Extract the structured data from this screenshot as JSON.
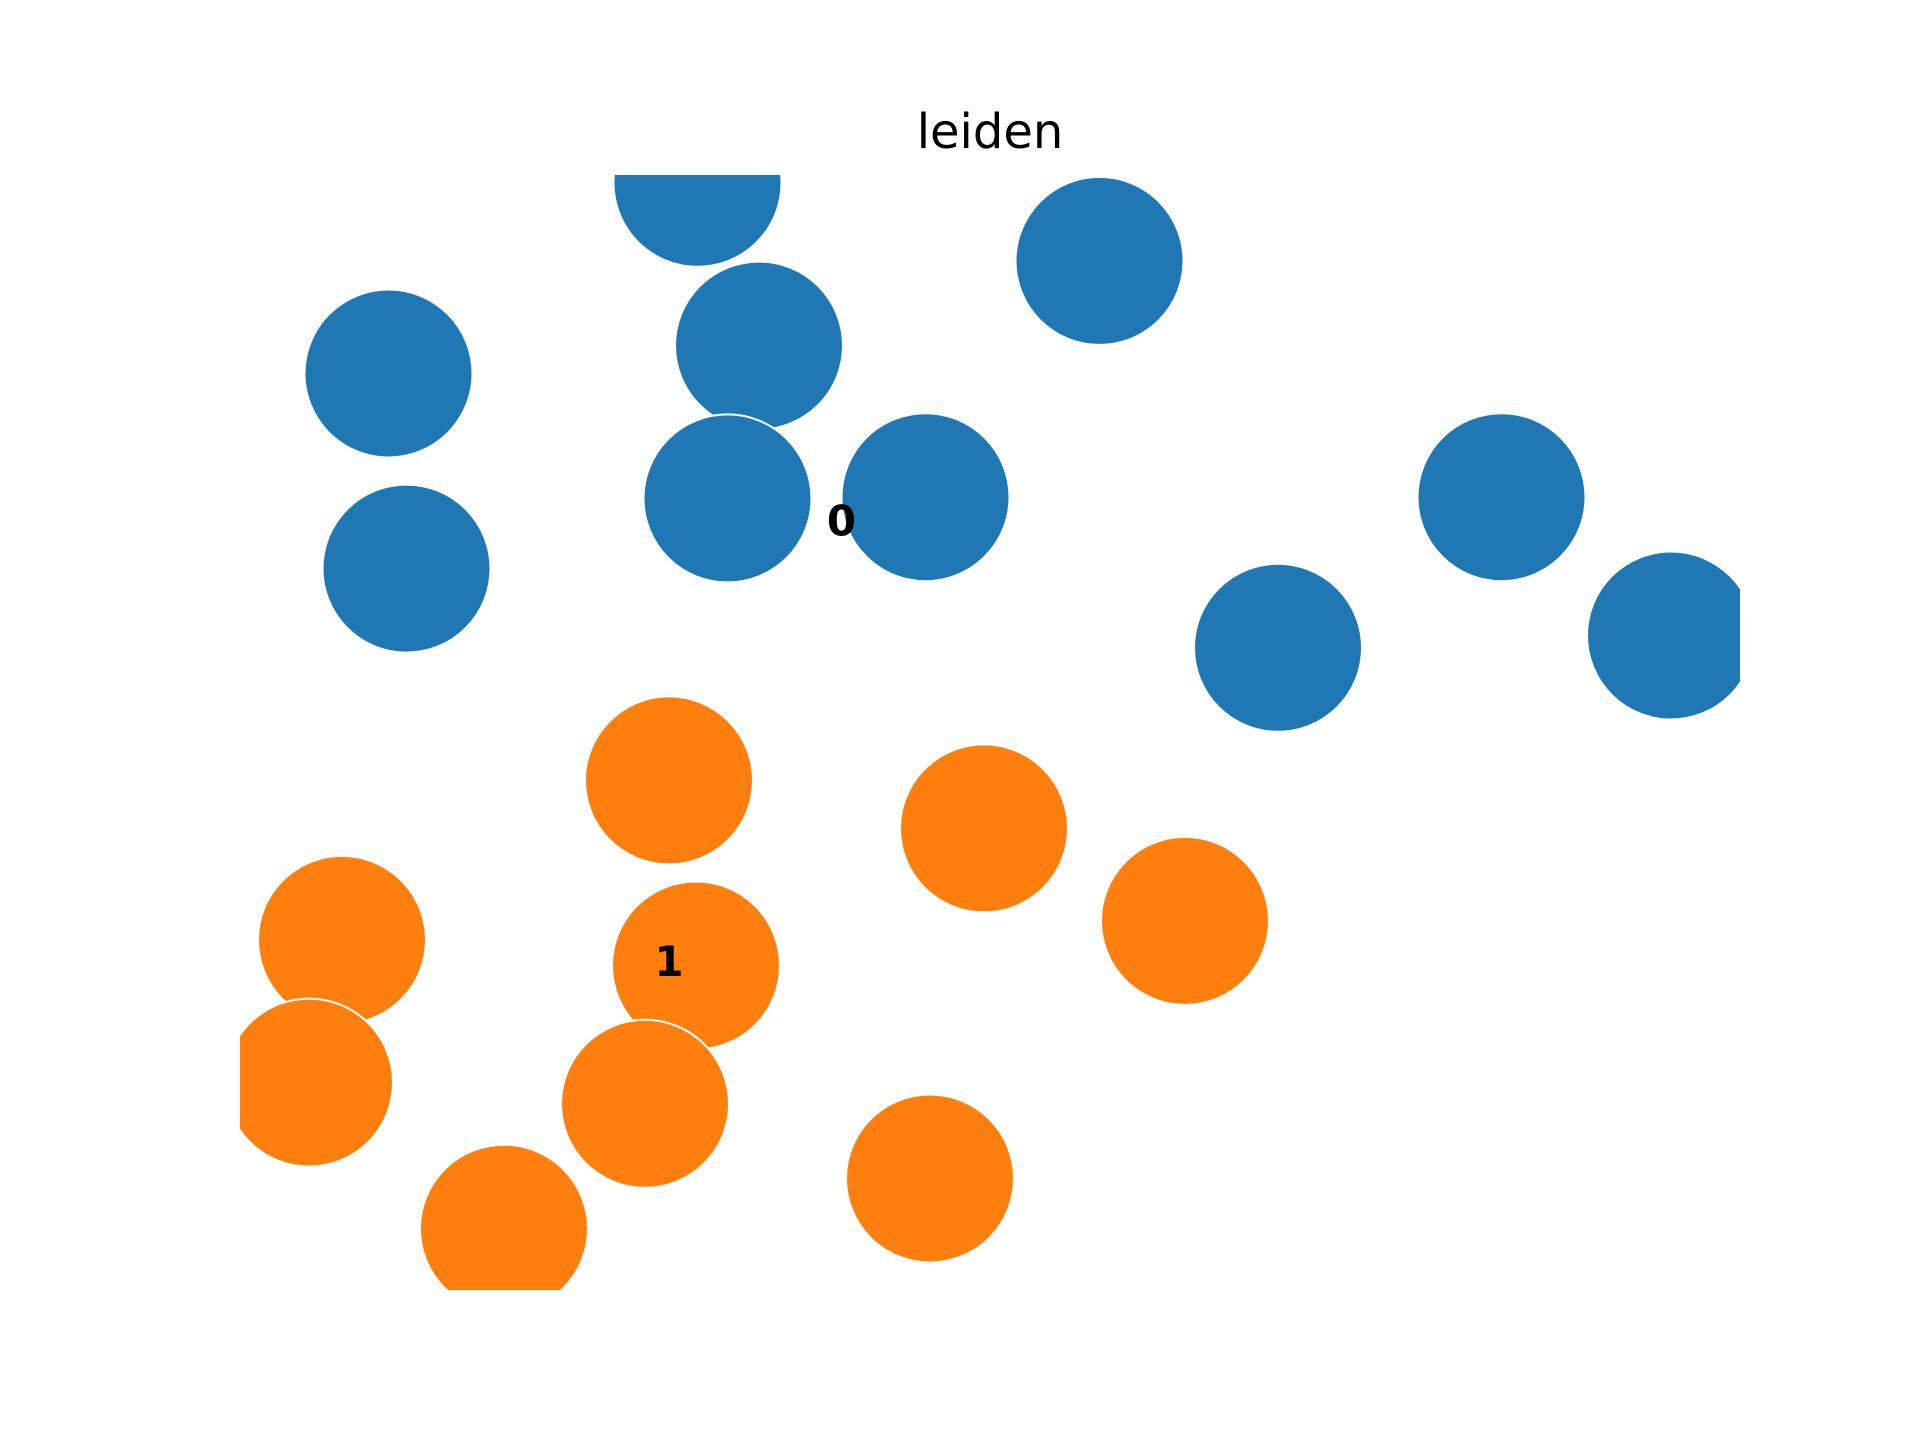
{
  "chart_data": {
    "type": "scatter",
    "title": "leiden",
    "xlabel": "",
    "ylabel": "",
    "axes_visible": false,
    "grid": false,
    "legend": "on data",
    "xlim": [
      0,
      1
    ],
    "ylim": [
      0,
      1
    ],
    "series": [
      {
        "name": "0",
        "color": "#1f77b4",
        "label_position": [
          0.401,
          0.687
        ],
        "points": [
          [
            0.305,
            0.993
          ],
          [
            0.573,
            0.923
          ],
          [
            0.346,
            0.847
          ],
          [
            0.099,
            0.822
          ],
          [
            0.325,
            0.71
          ],
          [
            0.457,
            0.711
          ],
          [
            0.111,
            0.647
          ],
          [
            0.841,
            0.711
          ],
          [
            0.692,
            0.576
          ],
          [
            0.954,
            0.587
          ]
        ]
      },
      {
        "name": "1",
        "color": "#ff7f0e",
        "label_position": [
          0.286,
          0.292
        ],
        "points": [
          [
            0.286,
            0.457
          ],
          [
            0.496,
            0.414
          ],
          [
            0.63,
            0.331
          ],
          [
            0.068,
            0.314
          ],
          [
            0.304,
            0.291
          ],
          [
            0.046,
            0.186
          ],
          [
            0.27,
            0.167
          ],
          [
            0.46,
            0.1
          ],
          [
            0.176,
            0.055
          ]
        ]
      }
    ]
  }
}
